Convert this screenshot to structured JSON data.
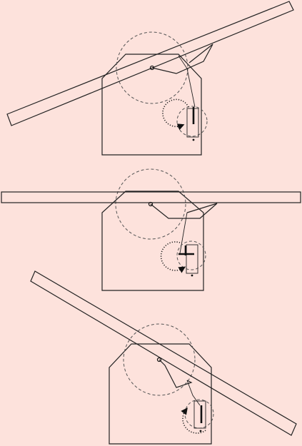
{
  "panels": [
    {
      "id": "top",
      "arm_rotation": "counter-clockwise"
    },
    {
      "id": "middle",
      "arm_rotation": "counter-clockwise"
    },
    {
      "id": "bottom",
      "arm_rotation": "clockwise"
    }
  ]
}
